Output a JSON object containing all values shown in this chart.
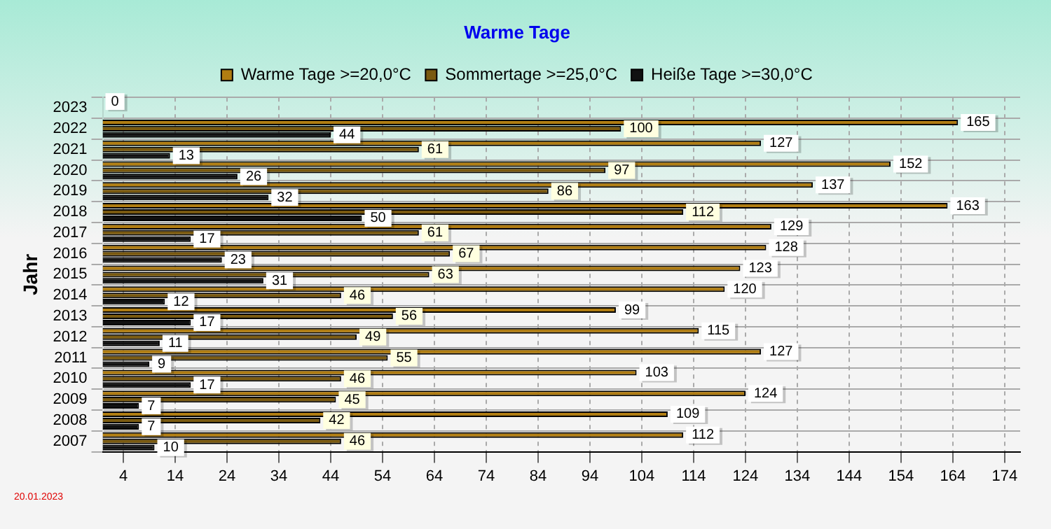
{
  "chart_data": {
    "type": "bar",
    "orientation": "horizontal",
    "title": "Warme Tage",
    "ylabel": "Jahr",
    "categories": [
      "2023",
      "2022",
      "2021",
      "2020",
      "2019",
      "2018",
      "2017",
      "2016",
      "2015",
      "2014",
      "2013",
      "2012",
      "2011",
      "2010",
      "2009",
      "2008",
      "2007"
    ],
    "series": [
      {
        "name": "Warme Tage >=20,0°C",
        "color": "#b07d12",
        "values": [
          0,
          165,
          127,
          152,
          137,
          163,
          129,
          128,
          123,
          120,
          99,
          115,
          127,
          103,
          124,
          109,
          112
        ],
        "value_labels": [
          "0",
          "165",
          "127",
          "152",
          "137",
          "163",
          "129",
          "128",
          "123",
          "120",
          "99",
          "115",
          "127",
          "103",
          "124",
          "109",
          "112"
        ]
      },
      {
        "name": "Sommertage >=25,0°C",
        "color": "#7a5a10",
        "values": [
          0,
          100,
          61,
          97,
          86,
          112,
          61,
          67,
          63,
          46,
          56,
          49,
          55,
          46,
          45,
          42,
          46
        ],
        "value_labels": [
          null,
          "100",
          "61",
          "97",
          "86",
          "112",
          "61",
          "67",
          "63",
          "46",
          "56",
          "49",
          "55",
          "46",
          "45",
          "42",
          "46"
        ]
      },
      {
        "name": "Heiße Tage >=30,0°C",
        "color": "#111111",
        "values": [
          0,
          44,
          13,
          26,
          32,
          50,
          17,
          23,
          31,
          12,
          17,
          11,
          9,
          17,
          7,
          7,
          10
        ],
        "value_labels": [
          null,
          "44",
          "13",
          "26",
          "32",
          "50",
          "17",
          "23",
          "31",
          "12",
          "17",
          "11",
          "9",
          "17",
          "7",
          "7",
          "10"
        ]
      }
    ],
    "xlim": [
      0,
      177
    ],
    "xticks": [
      4,
      14,
      24,
      34,
      44,
      54,
      64,
      74,
      84,
      94,
      104,
      114,
      124,
      134,
      144,
      154,
      164,
      174
    ],
    "grid": true,
    "legend": "top",
    "annotations": [
      "20.01.2023"
    ]
  }
}
